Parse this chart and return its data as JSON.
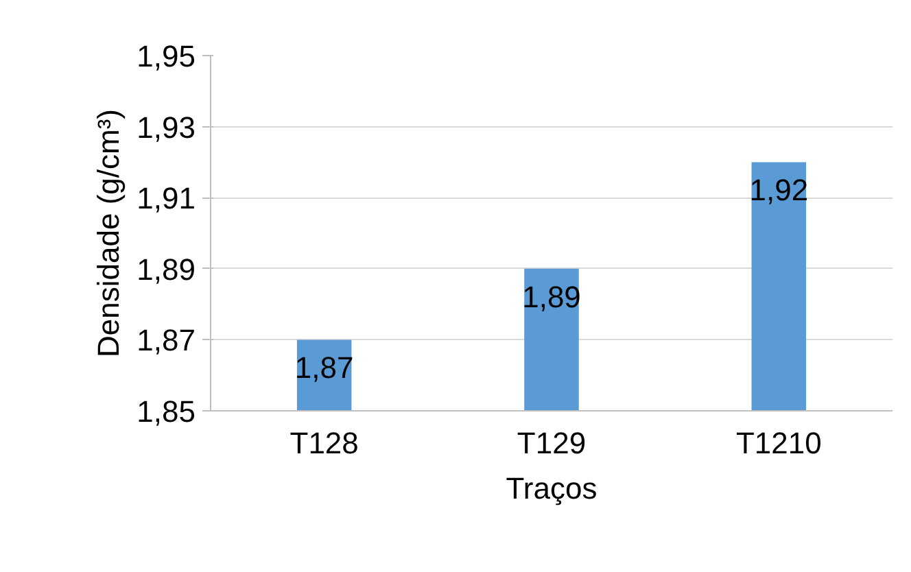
{
  "chart_data": {
    "type": "bar",
    "xlabel": "Traços",
    "ylabel": "Densidade (g/cm³)",
    "categories": [
      "T128",
      "T129",
      "T1210"
    ],
    "values": [
      1.87,
      1.89,
      1.92
    ],
    "value_labels": [
      "1,87",
      "1,89",
      "1,92"
    ],
    "color": "#5b9bd5",
    "ylim": [
      1.85,
      1.95
    ],
    "yticks": [
      {
        "value": 1.85,
        "label": "1,85"
      },
      {
        "value": 1.87,
        "label": "1,87"
      },
      {
        "value": 1.89,
        "label": "1,89"
      },
      {
        "value": 1.91,
        "label": "1,91"
      },
      {
        "value": 1.93,
        "label": "1,93"
      },
      {
        "value": 1.95,
        "label": "1,95"
      }
    ],
    "grid": "y"
  }
}
